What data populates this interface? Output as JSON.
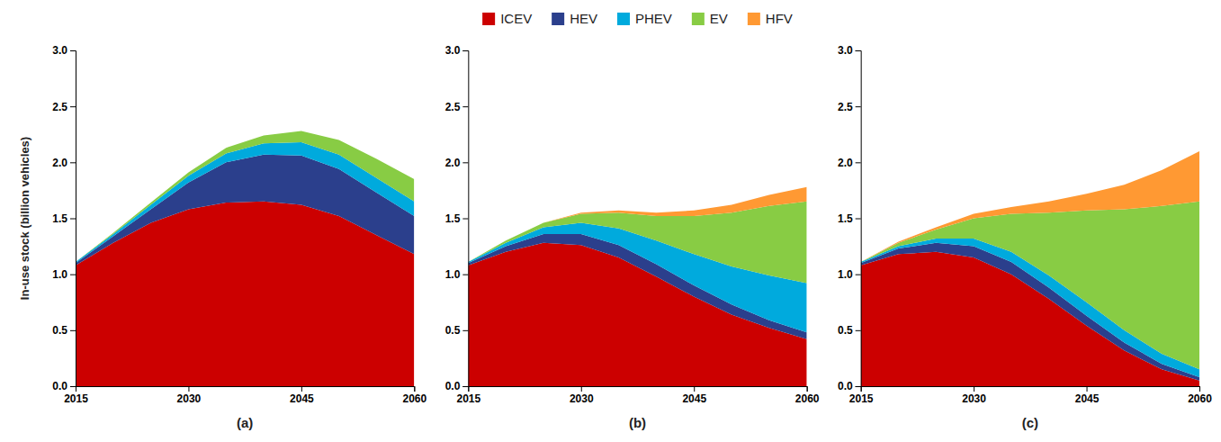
{
  "chart_data": [
    {
      "type": "area",
      "stacked": true,
      "legend": "top",
      "grid": false,
      "xlabel": "(a)",
      "ylabel": "In-use stock (billion vehicles)",
      "x": [
        2015,
        2020,
        2025,
        2030,
        2035,
        2040,
        2045,
        2050,
        2055,
        2060
      ],
      "xlim": [
        2015,
        2060
      ],
      "xticks": [
        2015,
        2030,
        2045,
        2060
      ],
      "ylim": [
        0.0,
        3.0
      ],
      "yticks": [
        {
          "value": 0,
          "label": "0.0"
        },
        0.5,
        {
          "value": 1,
          "label": "1.0"
        },
        1.5,
        {
          "value": 2,
          "label": "2.0"
        },
        2.5,
        {
          "value": 3,
          "label": "3.0"
        }
      ],
      "series": [
        {
          "name": "ICEV",
          "color": "#CC0000",
          "values": [
            1.08,
            1.28,
            1.46,
            1.58,
            1.64,
            1.65,
            1.62,
            1.52,
            1.35,
            1.18
          ]
        },
        {
          "name": "HEV",
          "color": "#2B3F8C",
          "values": [
            0.02,
            0.06,
            0.12,
            0.24,
            0.36,
            0.42,
            0.44,
            0.42,
            0.38,
            0.34
          ]
        },
        {
          "name": "PHEV",
          "color": "#00AADD",
          "values": [
            0.01,
            0.02,
            0.04,
            0.06,
            0.08,
            0.1,
            0.12,
            0.13,
            0.13,
            0.13
          ]
        },
        {
          "name": "EV",
          "color": "#88CC44",
          "values": [
            0.0,
            0.01,
            0.02,
            0.03,
            0.05,
            0.07,
            0.1,
            0.13,
            0.17,
            0.2
          ]
        },
        {
          "name": "HFV",
          "color": "#FF9933",
          "values": [
            0.0,
            0.0,
            0.0,
            0.0,
            0.0,
            0.0,
            0.0,
            0.0,
            0.0,
            0.0
          ]
        }
      ]
    },
    {
      "type": "area",
      "stacked": true,
      "grid": false,
      "xlabel": "(b)",
      "x": [
        2015,
        2020,
        2025,
        2030,
        2035,
        2040,
        2045,
        2050,
        2055,
        2060
      ],
      "xlim": [
        2015,
        2060
      ],
      "xticks": [
        2015,
        2030,
        2045,
        2060
      ],
      "ylim": [
        0.0,
        3.0
      ],
      "yticks": [
        {
          "value": 0,
          "label": "0.0"
        },
        0.5,
        {
          "value": 1,
          "label": "1.0"
        },
        1.5,
        {
          "value": 2,
          "label": "2.0"
        },
        2.5,
        {
          "value": 3,
          "label": "3.0"
        }
      ],
      "series": [
        {
          "name": "ICEV",
          "color": "#CC0000",
          "values": [
            1.08,
            1.2,
            1.28,
            1.26,
            1.15,
            0.98,
            0.8,
            0.64,
            0.52,
            0.42
          ]
        },
        {
          "name": "HEV",
          "color": "#2B3F8C",
          "values": [
            0.02,
            0.05,
            0.08,
            0.1,
            0.11,
            0.11,
            0.1,
            0.09,
            0.07,
            0.06
          ]
        },
        {
          "name": "PHEV",
          "color": "#00AADD",
          "values": [
            0.01,
            0.03,
            0.06,
            0.1,
            0.15,
            0.21,
            0.28,
            0.34,
            0.4,
            0.44
          ]
        },
        {
          "name": "EV",
          "color": "#88CC44",
          "values": [
            0.0,
            0.02,
            0.04,
            0.08,
            0.14,
            0.22,
            0.34,
            0.48,
            0.62,
            0.73
          ]
        },
        {
          "name": "HFV",
          "color": "#FF9933",
          "values": [
            0.0,
            0.0,
            0.0,
            0.01,
            0.02,
            0.03,
            0.05,
            0.07,
            0.1,
            0.13
          ]
        }
      ]
    },
    {
      "type": "area",
      "stacked": true,
      "grid": false,
      "xlabel": "(c)",
      "x": [
        2015,
        2020,
        2025,
        2030,
        2035,
        2040,
        2045,
        2050,
        2055,
        2060
      ],
      "xlim": [
        2015,
        2060
      ],
      "xticks": [
        2015,
        2030,
        2045,
        2060
      ],
      "ylim": [
        0.0,
        3.0
      ],
      "yticks": [
        {
          "value": 0,
          "label": "0.0"
        },
        0.5,
        {
          "value": 1,
          "label": "1.0"
        },
        1.5,
        {
          "value": 2,
          "label": "2.0"
        },
        2.5,
        {
          "value": 3,
          "label": "3.0"
        }
      ],
      "series": [
        {
          "name": "ICEV",
          "color": "#CC0000",
          "values": [
            1.08,
            1.18,
            1.2,
            1.15,
            1.0,
            0.78,
            0.54,
            0.32,
            0.15,
            0.05
          ]
        },
        {
          "name": "HEV",
          "color": "#2B3F8C",
          "values": [
            0.02,
            0.05,
            0.08,
            0.1,
            0.11,
            0.1,
            0.09,
            0.07,
            0.05,
            0.03
          ]
        },
        {
          "name": "PHEV",
          "color": "#00AADD",
          "values": [
            0.01,
            0.02,
            0.04,
            0.07,
            0.09,
            0.11,
            0.12,
            0.11,
            0.09,
            0.07
          ]
        },
        {
          "name": "EV",
          "color": "#88CC44",
          "values": [
            0.0,
            0.03,
            0.08,
            0.18,
            0.34,
            0.56,
            0.82,
            1.08,
            1.32,
            1.5
          ]
        },
        {
          "name": "HFV",
          "color": "#FF9933",
          "values": [
            0.0,
            0.01,
            0.02,
            0.04,
            0.06,
            0.1,
            0.15,
            0.22,
            0.32,
            0.45
          ]
        }
      ]
    }
  ]
}
